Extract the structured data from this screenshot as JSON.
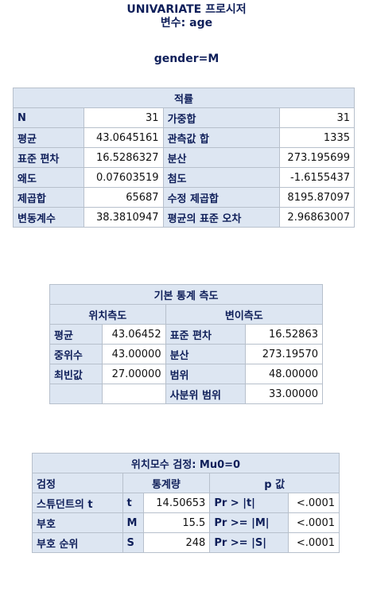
{
  "header": {
    "title": "UNIVARIATE 프로시저",
    "variable": "변수: age",
    "group": "gender=M"
  },
  "moments": {
    "caption": "적률",
    "rows": [
      {
        "l1": "N",
        "v1": "31",
        "l2": "가중합",
        "v2": "31"
      },
      {
        "l1": "평균",
        "v1": "43.0645161",
        "l2": "관측값 합",
        "v2": "1335"
      },
      {
        "l1": "표준 편차",
        "v1": "16.5286327",
        "l2": "분산",
        "v2": "273.195699"
      },
      {
        "l1": "왜도",
        "v1": "0.07603519",
        "l2": "첨도",
        "v2": "-1.6155437"
      },
      {
        "l1": "제곱합",
        "v1": "65687",
        "l2": "수정 제곱합",
        "v2": "8195.87097"
      },
      {
        "l1": "변동계수",
        "v1": "38.3810947",
        "l2": "평균의 표준 오차",
        "v2": "2.96863007"
      }
    ]
  },
  "basic": {
    "caption": "기본 통계 측도",
    "loc_header": "위치측도",
    "var_header": "변이측도",
    "rows": [
      {
        "l1": "평균",
        "v1": "43.06452",
        "l2": "표준 편차",
        "v2": "16.52863"
      },
      {
        "l1": "중위수",
        "v1": "43.00000",
        "l2": "분산",
        "v2": "273.19570"
      },
      {
        "l1": "최빈값",
        "v1": "27.00000",
        "l2": "범위",
        "v2": "48.00000"
      },
      {
        "l1": "",
        "v1": "",
        "l2": "사분위 범위",
        "v2": "33.00000"
      }
    ]
  },
  "tests": {
    "caption": "위치모수 검정: Mu0=0",
    "col_test": "검정",
    "col_stat": "통계량",
    "col_p": "p 값",
    "rows": [
      {
        "test": "스튜던트의 t",
        "sym": "t",
        "stat": "14.50653",
        "plabel": "Pr > |t|",
        "pval": "<.0001"
      },
      {
        "test": "부호",
        "sym": "M",
        "stat": "15.5",
        "plabel": "Pr >= |M|",
        "pval": "<.0001"
      },
      {
        "test": "부호 순위",
        "sym": "S",
        "stat": "248",
        "plabel": "Pr >= |S|",
        "pval": "<.0001"
      }
    ]
  }
}
